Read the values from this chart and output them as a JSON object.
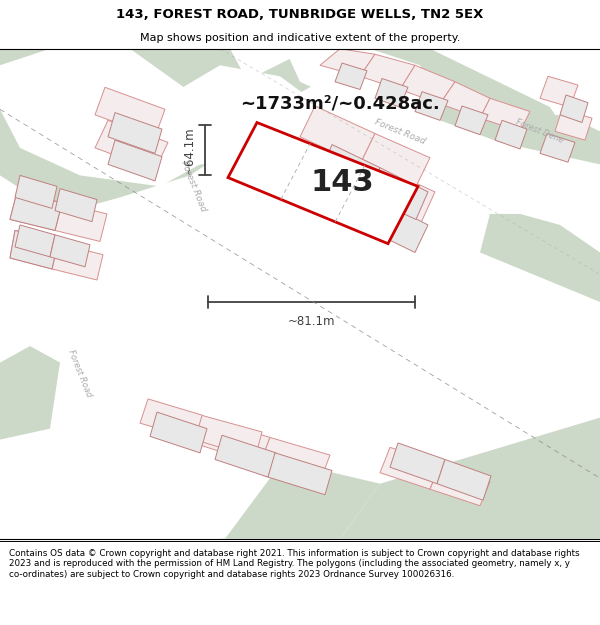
{
  "title": "143, FOREST ROAD, TUNBRIDGE WELLS, TN2 5EX",
  "subtitle": "Map shows position and indicative extent of the property.",
  "footer": "Contains OS data © Crown copyright and database right 2021. This information is subject to Crown copyright and database rights 2023 and is reproduced with the permission of HM Land Registry. The polygons (including the associated geometry, namely x, y co-ordinates) are subject to Crown copyright and database rights 2023 Ordnance Survey 100026316.",
  "area_text": "~1733m²/~0.428ac.",
  "label": "143",
  "dim_width": "~81.1m",
  "dim_height": "~64.1m",
  "bg_color": "#eef0eb",
  "green_color": "#cdd9c8",
  "plot_outline_color": "#cc0000",
  "boundary_color": "#d89090",
  "boundary_fill": "#f5eded",
  "road_label_color": "#aaaaaa",
  "dim_color": "#404040",
  "title_color": "#000000",
  "footer_color": "#000000",
  "building_fill": "#e8e8e8",
  "building_edge": "#c08080"
}
